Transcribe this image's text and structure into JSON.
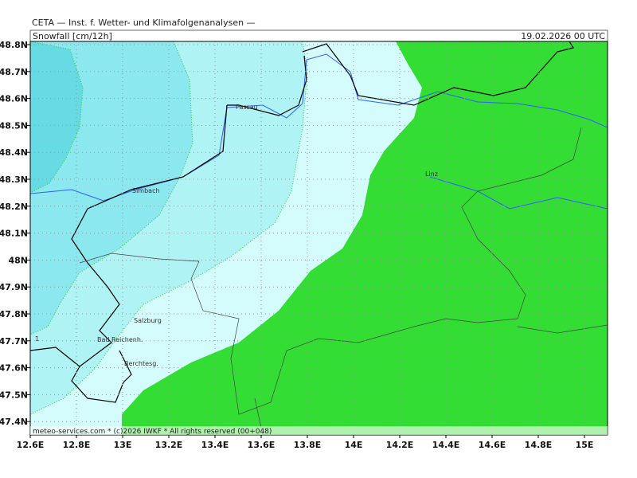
{
  "header": {
    "source": "CETA — Inst. f. Wetter- und Klimafolgenanalysen —",
    "title": "Snowfall [cm/12h]",
    "date": "19.02.2026 00 UTC"
  },
  "lat_labels": [
    "48.8N",
    "48.7N",
    "48.6N",
    "48.5N",
    "48.4N",
    "48.3N",
    "48.2N",
    "48.1N",
    "48N",
    "47.9N",
    "47.8N",
    "47.7N",
    "47.6N",
    "47.5N",
    "47.4N"
  ],
  "lon_labels": [
    "12.6E",
    "12.8E",
    "13E",
    "13.2E",
    "13.4E",
    "13.6E",
    "13.8E",
    "14E",
    "14.2E",
    "14.4E",
    "14.6E",
    "14.8E",
    "15E"
  ],
  "places": [
    {
      "label": "Passau"
    },
    {
      "label": "Simbach"
    },
    {
      "label": "Linz"
    },
    {
      "label": "Salzburg"
    },
    {
      "label": "Bad Reichenh."
    },
    {
      "label": "Berchtesg."
    }
  ],
  "contour_label": "1",
  "footer": "meteo-services.com * (c)2026 IWKF * All rights reserved (00+048)"
}
